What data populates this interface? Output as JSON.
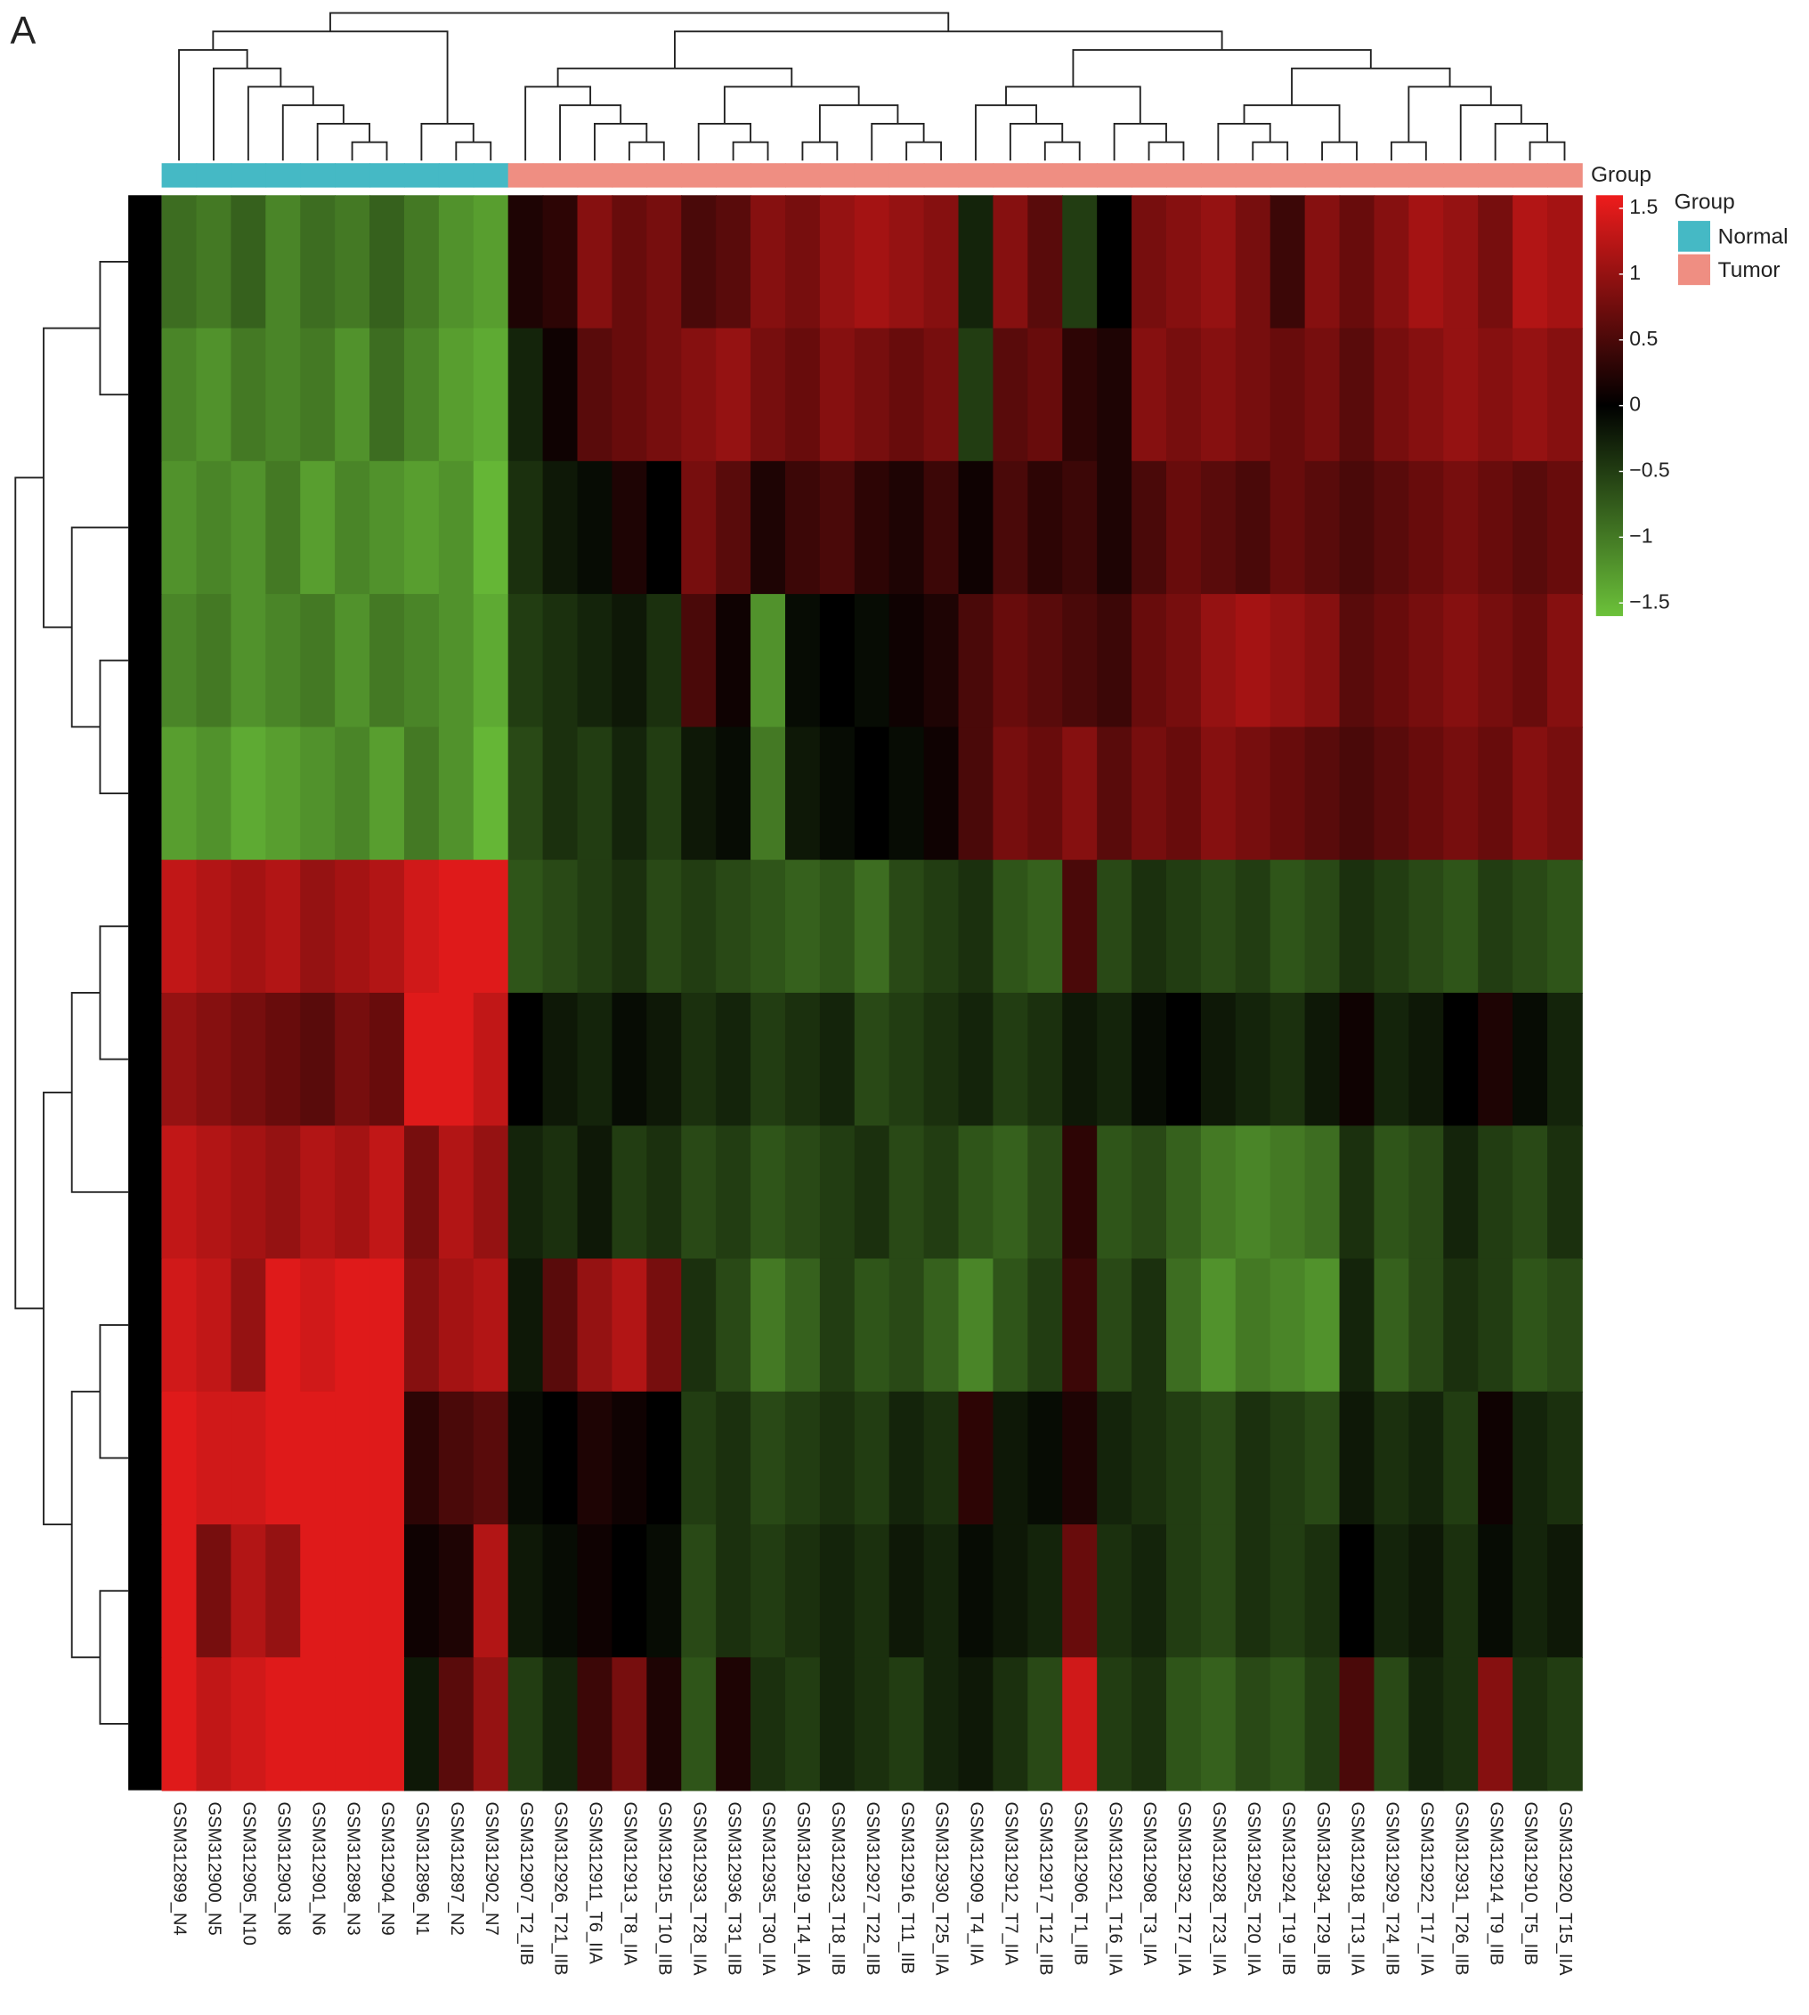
{
  "chart_data": {
    "type": "heatmap",
    "panel_label": "A",
    "annotation_label": "Group",
    "columns": [
      "GSM312899_N4",
      "GSM312900_N5",
      "GSM312905_N10",
      "GSM312903_N8",
      "GSM312901_N6",
      "GSM312898_N3",
      "GSM312904_N9",
      "GSM312896_N1",
      "GSM312897_N2",
      "GSM312902_N7",
      "GSM312907_T2_IIB",
      "GSM312926_T21_IIB",
      "GSM312911_T6_IIA",
      "GSM312913_T8_IIA",
      "GSM312915_T10_IIB",
      "GSM312933_T28_IIA",
      "GSM312936_T31_IIB",
      "GSM312935_T30_IIA",
      "GSM312919_T14_IIA",
      "GSM312923_T18_IIB",
      "GSM312927_T22_IIB",
      "GSM312916_T11_IIB",
      "GSM312930_T25_IIA",
      "GSM312909_T4_IIA",
      "GSM312912_T7_IIA",
      "GSM312917_T12_IIB",
      "GSM312906_T1_IIB",
      "GSM312921_T16_IIA",
      "GSM312908_T3_IIA",
      "GSM312932_T27_IIA",
      "GSM312928_T23_IIA",
      "GSM312925_T20_IIA",
      "GSM312924_T19_IIB",
      "GSM312934_T29_IIB",
      "GSM312918_T13_IIA",
      "GSM312929_T24_IIB",
      "GSM312922_T17_IIA",
      "GSM312931_T26_IIB",
      "GSM312914_T9_IIB",
      "GSM312910_T5_IIB",
      "GSM312920_T15_IIA"
    ],
    "groups": [
      0,
      0,
      0,
      0,
      0,
      0,
      0,
      0,
      0,
      0,
      1,
      1,
      1,
      1,
      1,
      1,
      1,
      1,
      1,
      1,
      1,
      1,
      1,
      1,
      1,
      1,
      1,
      1,
      1,
      1,
      1,
      1,
      1,
      1,
      1,
      1,
      1,
      1,
      1,
      1,
      1
    ],
    "legend": {
      "title": "Group",
      "entries": [
        {
          "name": "Normal",
          "color": "#45b9c5"
        },
        {
          "name": "Tumor",
          "color": "#ef8e82"
        }
      ]
    },
    "colorscale": [
      "#6cc23a",
      "#000000",
      "#ee1c1c"
    ],
    "clim": [
      -1.6,
      1.6
    ],
    "colorbar_ticks": [
      1.5,
      1,
      0.5,
      0,
      {
        "value": -0.5,
        "label": "−0.5"
      },
      {
        "value": -1,
        "label": "−1"
      },
      {
        "value": -1.5,
        "label": "−1.5"
      }
    ],
    "values": [
      [
        -0.9,
        -1.0,
        -0.8,
        -1.1,
        -0.9,
        -1.0,
        -0.8,
        -1.0,
        -1.2,
        -1.3,
        0.2,
        0.3,
        0.9,
        0.7,
        0.8,
        0.5,
        0.6,
        0.9,
        0.8,
        1.0,
        1.1,
        1.0,
        0.9,
        -0.3,
        0.9,
        0.6,
        -0.5,
        0.0,
        0.8,
        0.9,
        1.0,
        0.8,
        0.4,
        0.9,
        0.7,
        0.9,
        1.1,
        1.0,
        0.8,
        1.2,
        1.1
      ],
      [
        -1.1,
        -1.2,
        -1.0,
        -1.1,
        -1.0,
        -1.2,
        -0.9,
        -1.1,
        -1.3,
        -1.4,
        -0.3,
        0.1,
        0.6,
        0.7,
        0.8,
        0.9,
        1.0,
        0.8,
        0.7,
        0.9,
        0.8,
        0.7,
        0.8,
        -0.5,
        0.6,
        0.7,
        0.3,
        0.2,
        0.9,
        0.8,
        0.9,
        0.8,
        0.7,
        0.8,
        0.6,
        0.8,
        0.9,
        1.0,
        0.9,
        1.0,
        0.9
      ],
      [
        -1.2,
        -1.1,
        -1.2,
        -1.0,
        -1.3,
        -1.1,
        -1.2,
        -1.3,
        -1.2,
        -1.5,
        -0.4,
        -0.2,
        -0.1,
        0.2,
        0.0,
        0.8,
        0.6,
        0.2,
        0.4,
        0.5,
        0.3,
        0.2,
        0.4,
        0.1,
        0.5,
        0.3,
        0.4,
        0.2,
        0.5,
        0.7,
        0.6,
        0.5,
        0.7,
        0.6,
        0.5,
        0.6,
        0.7,
        0.8,
        0.7,
        0.6,
        0.7
      ],
      [
        -1.1,
        -1.0,
        -1.2,
        -1.1,
        -1.0,
        -1.2,
        -1.0,
        -1.1,
        -1.2,
        -1.4,
        -0.5,
        -0.4,
        -0.3,
        -0.2,
        -0.4,
        0.5,
        0.1,
        -1.2,
        -0.1,
        0.0,
        -0.1,
        0.1,
        0.2,
        0.5,
        0.7,
        0.6,
        0.5,
        0.4,
        0.7,
        0.8,
        1.0,
        1.1,
        1.0,
        0.9,
        0.6,
        0.7,
        0.8,
        0.9,
        0.8,
        0.7,
        0.9
      ],
      [
        -1.3,
        -1.2,
        -1.4,
        -1.3,
        -1.2,
        -1.1,
        -1.3,
        -1.0,
        -1.2,
        -1.5,
        -0.6,
        -0.4,
        -0.5,
        -0.3,
        -0.5,
        -0.2,
        -0.1,
        -1.0,
        -0.2,
        -0.1,
        0.0,
        -0.1,
        0.1,
        0.5,
        0.8,
        0.7,
        0.9,
        0.6,
        0.8,
        0.7,
        0.9,
        0.8,
        0.7,
        0.6,
        0.5,
        0.6,
        0.7,
        0.8,
        0.7,
        0.9,
        0.8
      ],
      [
        1.3,
        1.2,
        1.1,
        1.2,
        1.0,
        1.1,
        1.2,
        1.4,
        1.5,
        1.5,
        -0.7,
        -0.6,
        -0.5,
        -0.4,
        -0.6,
        -0.5,
        -0.6,
        -0.7,
        -0.8,
        -0.7,
        -0.9,
        -0.6,
        -0.5,
        -0.4,
        -0.7,
        -0.8,
        0.5,
        -0.6,
        -0.4,
        -0.5,
        -0.6,
        -0.5,
        -0.7,
        -0.6,
        -0.4,
        -0.5,
        -0.6,
        -0.7,
        -0.5,
        -0.6,
        -0.7
      ],
      [
        1.0,
        0.9,
        0.8,
        0.7,
        0.6,
        0.8,
        0.7,
        1.5,
        1.5,
        1.3,
        0.0,
        -0.2,
        -0.3,
        -0.1,
        -0.2,
        -0.4,
        -0.3,
        -0.5,
        -0.4,
        -0.3,
        -0.6,
        -0.5,
        -0.4,
        -0.3,
        -0.5,
        -0.4,
        -0.2,
        -0.3,
        -0.1,
        0.0,
        -0.2,
        -0.3,
        -0.4,
        -0.2,
        0.1,
        -0.3,
        -0.2,
        0.0,
        0.2,
        -0.1,
        -0.3
      ],
      [
        1.3,
        1.2,
        1.1,
        1.0,
        1.2,
        1.1,
        1.3,
        0.8,
        1.2,
        1.0,
        -0.3,
        -0.4,
        -0.2,
        -0.5,
        -0.4,
        -0.6,
        -0.5,
        -0.7,
        -0.6,
        -0.5,
        -0.4,
        -0.6,
        -0.5,
        -0.7,
        -0.8,
        -0.6,
        0.3,
        -0.7,
        -0.6,
        -0.8,
        -1.0,
        -1.1,
        -1.0,
        -0.9,
        -0.4,
        -0.7,
        -0.6,
        -0.3,
        -0.5,
        -0.6,
        -0.4
      ],
      [
        1.4,
        1.3,
        1.0,
        1.5,
        1.4,
        1.5,
        1.5,
        0.9,
        1.1,
        1.2,
        -0.2,
        0.6,
        1.0,
        1.2,
        0.8,
        -0.4,
        -0.6,
        -1.0,
        -0.8,
        -0.5,
        -0.7,
        -0.6,
        -0.8,
        -1.1,
        -0.7,
        -0.5,
        0.4,
        -0.6,
        -0.4,
        -0.9,
        -1.2,
        -1.0,
        -1.1,
        -1.2,
        -0.3,
        -0.8,
        -0.6,
        -0.4,
        -0.5,
        -0.7,
        -0.6
      ],
      [
        1.5,
        1.4,
        1.4,
        1.5,
        1.5,
        1.5,
        1.5,
        0.3,
        0.5,
        0.6,
        -0.1,
        0.0,
        0.2,
        0.1,
        0.0,
        -0.5,
        -0.4,
        -0.6,
        -0.5,
        -0.4,
        -0.5,
        -0.3,
        -0.4,
        0.3,
        -0.2,
        -0.1,
        0.2,
        -0.3,
        -0.4,
        -0.5,
        -0.6,
        -0.4,
        -0.5,
        -0.6,
        -0.2,
        -0.4,
        -0.3,
        -0.5,
        0.1,
        -0.3,
        -0.4
      ],
      [
        1.5,
        0.8,
        1.2,
        1.0,
        1.5,
        1.5,
        1.5,
        0.1,
        0.2,
        1.2,
        -0.2,
        -0.1,
        0.1,
        0.0,
        -0.1,
        -0.6,
        -0.4,
        -0.5,
        -0.4,
        -0.3,
        -0.4,
        -0.2,
        -0.3,
        -0.1,
        -0.2,
        -0.3,
        0.7,
        -0.4,
        -0.3,
        -0.5,
        -0.6,
        -0.4,
        -0.5,
        -0.4,
        0.0,
        -0.3,
        -0.2,
        -0.4,
        -0.1,
        -0.3,
        -0.2
      ],
      [
        1.5,
        1.3,
        1.4,
        1.5,
        1.5,
        1.5,
        1.5,
        -0.2,
        0.6,
        1.0,
        -0.5,
        -0.3,
        0.4,
        0.8,
        0.2,
        -0.7,
        0.2,
        -0.4,
        -0.5,
        -0.3,
        -0.4,
        -0.5,
        -0.3,
        -0.2,
        -0.4,
        -0.6,
        1.4,
        -0.5,
        -0.4,
        -0.7,
        -0.8,
        -0.6,
        -0.7,
        -0.5,
        0.5,
        -0.6,
        -0.3,
        -0.4,
        0.9,
        -0.4,
        -0.5
      ]
    ]
  }
}
